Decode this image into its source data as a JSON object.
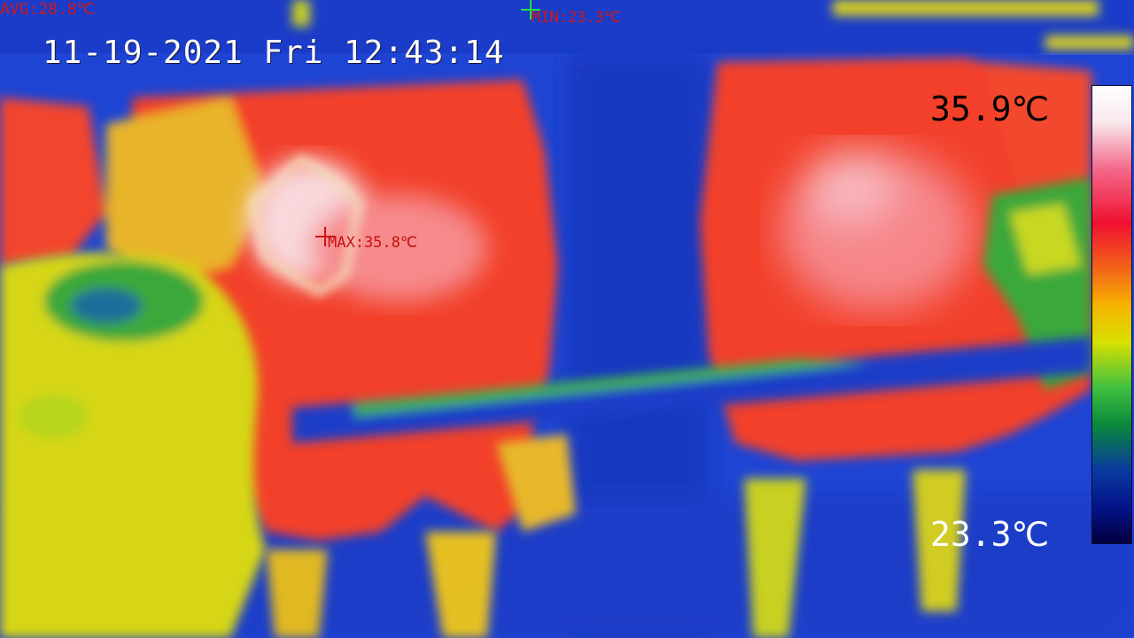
{
  "overlay": {
    "timestamp": "11-19-2021 Fri 12:43:14",
    "avg_label": "AVG:28.8℃",
    "min_label": "MIN:23.3℃",
    "max_label": "MAX:35.8℃"
  },
  "scale": {
    "max_label": "35.9℃",
    "min_label": "23.3℃"
  },
  "colors": {
    "cold": "#0a1fb0",
    "hot": "#f23a2a",
    "hottest": "#f8d0d8",
    "warm": "#d8dc10",
    "marker_min": "#20e040",
    "marker_max": "#d01010"
  }
}
